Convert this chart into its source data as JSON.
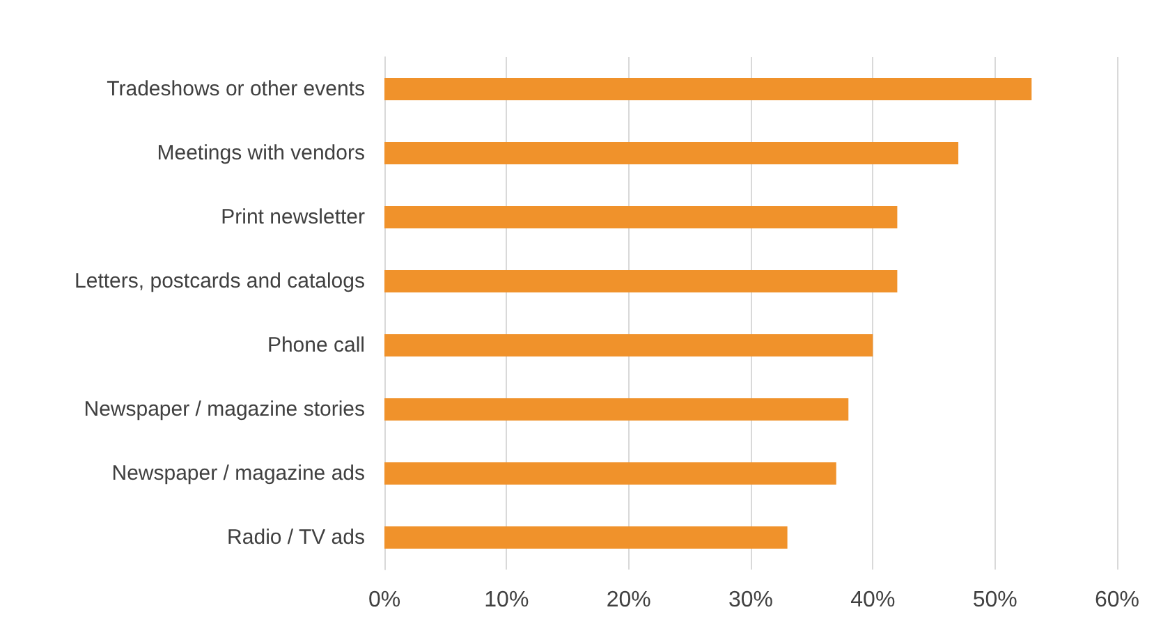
{
  "chart_data": {
    "type": "bar",
    "orientation": "horizontal",
    "categories": [
      "Tradeshows or other events",
      "Meetings with vendors",
      "Print newsletter",
      "Letters, postcards and catalogs",
      "Phone call",
      "Newspaper / magazine stories",
      "Newspaper / magazine ads",
      "Radio / TV ads"
    ],
    "values": [
      53,
      47,
      42,
      42,
      40,
      38,
      37,
      33
    ],
    "color": "#f0922b",
    "xlim": [
      0,
      60
    ],
    "xticks": [
      {
        "value": 0,
        "label": "0%"
      },
      {
        "value": 10,
        "label": "10%"
      },
      {
        "value": 20,
        "label": "20%"
      },
      {
        "value": 30,
        "label": "30%"
      },
      {
        "value": 40,
        "label": "40%"
      },
      {
        "value": 50,
        "label": "50%"
      },
      {
        "value": 60,
        "label": "60%"
      }
    ],
    "grid": "x"
  }
}
